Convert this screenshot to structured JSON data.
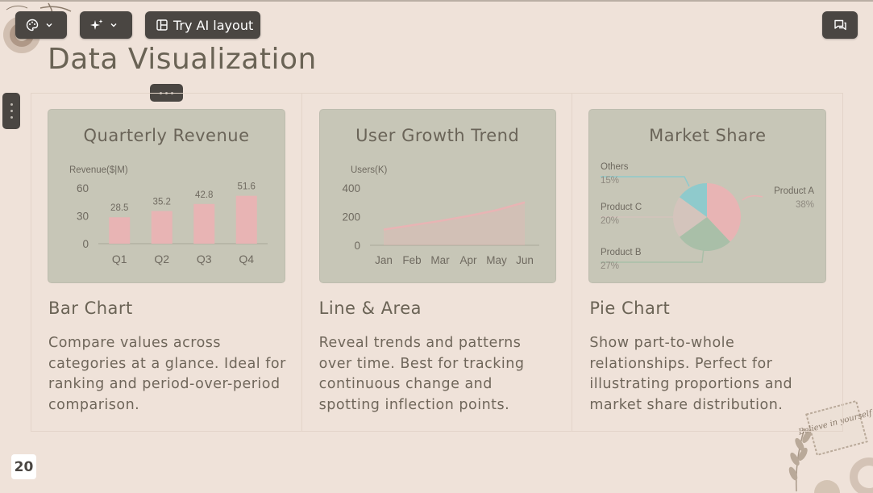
{
  "toolbar": {
    "layout_label": "Try AI layout"
  },
  "page": {
    "title": "Data Visualization",
    "page_number": "20"
  },
  "columns": [
    {
      "card_title": "Quarterly Revenue",
      "heading": "Bar Chart",
      "description": "Compare values across categories at a glance. Ideal for ranking and period-over-period comparison."
    },
    {
      "card_title": "User Growth Trend",
      "heading": "Line & Area",
      "description": "Reveal trends and patterns over time. Best for tracking continuous change and spotting inflection points."
    },
    {
      "card_title": "Market Share",
      "heading": "Pie Chart",
      "description": "Show part-to-whole relationships. Perfect for illustrating proportions and market share distribution."
    }
  ],
  "decor": {
    "stamp_text": "Believe in yourself"
  },
  "chart_data": [
    {
      "type": "bar",
      "categories": [
        "Q1",
        "Q2",
        "Q3",
        "Q4"
      ],
      "values": [
        28.5,
        35.2,
        42.8,
        51.6
      ],
      "value_labels": [
        "28.5",
        "35.2",
        "42.8",
        "51.6"
      ],
      "ylabel": "Revenue($|M)",
      "yticks": [
        "0",
        "30",
        "60"
      ],
      "ylim": [
        0,
        60
      ],
      "color": "#e8b4b4"
    },
    {
      "type": "area",
      "categories": [
        "Jan",
        "Feb",
        "Mar",
        "Apr",
        "May",
        "Jun"
      ],
      "values": [
        110,
        140,
        170,
        205,
        245,
        300
      ],
      "ylabel": "Users(K)",
      "yticks": [
        "0",
        "200",
        "400"
      ],
      "ylim": [
        0,
        400
      ],
      "color": "#e8b4b4"
    },
    {
      "type": "pie",
      "slices": [
        {
          "name": "Product A",
          "value": 38,
          "label": "38%",
          "color": "#e8b4b4"
        },
        {
          "name": "Product B",
          "value": 27,
          "label": "27%",
          "color": "#a9bfa8"
        },
        {
          "name": "Product C",
          "value": 20,
          "label": "20%",
          "color": "#d4c4bc"
        },
        {
          "name": "Others",
          "value": 15,
          "label": "15%",
          "color": "#8fcacc"
        }
      ]
    }
  ]
}
